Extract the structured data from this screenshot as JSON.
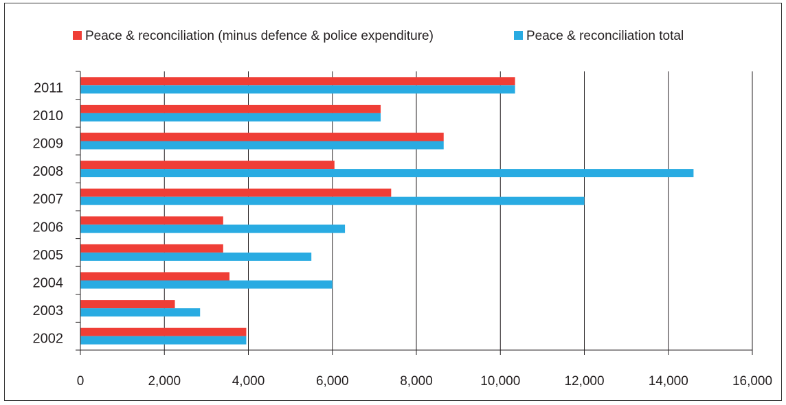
{
  "chart_data": {
    "type": "bar",
    "orientation": "horizontal",
    "categories": [
      "2011",
      "2010",
      "2009",
      "2008",
      "2007",
      "2006",
      "2005",
      "2004",
      "2003",
      "2002"
    ],
    "series": [
      {
        "name": "Peace & reconciliation (minus defence & police expenditure)",
        "color": "#ef3e36",
        "values": [
          10350,
          7150,
          8650,
          6050,
          7400,
          3400,
          3400,
          3550,
          2250,
          3950
        ]
      },
      {
        "name": "Peace & reconciliation total",
        "color": "#29abe2",
        "values": [
          10350,
          7150,
          8650,
          14600,
          12000,
          6300,
          5500,
          6000,
          2850,
          3950
        ]
      }
    ],
    "x_ticks": [
      "0",
      "2,000",
      "4,000",
      "6,000",
      "8,000",
      "10,000",
      "12,000",
      "14,000",
      "16,000"
    ],
    "xlim": [
      0,
      16000
    ],
    "grid": "vertical",
    "legend_position": "top"
  }
}
